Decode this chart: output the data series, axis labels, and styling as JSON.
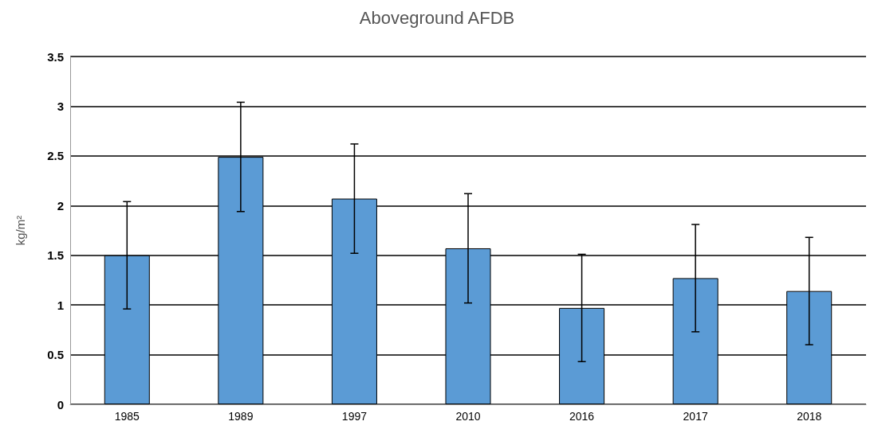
{
  "chart_data": {
    "type": "bar",
    "title": "Aboveground AFDB",
    "ylabel": "kg/m²",
    "categories": [
      "1985",
      "1989",
      "1997",
      "2010",
      "2016",
      "2017",
      "2018"
    ],
    "values": [
      1.5,
      2.49,
      2.07,
      1.57,
      0.97,
      1.27,
      1.14
    ],
    "errors": [
      0.54,
      0.55,
      0.55,
      0.55,
      0.54,
      0.54,
      0.54
    ],
    "color": "#5b9bd5",
    "ylim": [
      0,
      3.5
    ],
    "yticks": [
      0,
      0.5,
      1,
      1.5,
      2,
      2.5,
      3,
      3.5
    ],
    "grid": "y"
  }
}
